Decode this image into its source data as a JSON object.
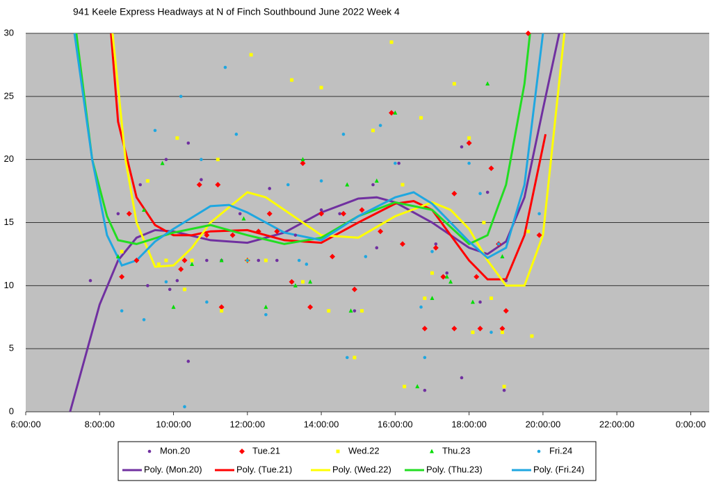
{
  "chart_data": {
    "type": "scatter",
    "title": "941 Keele Express Headways at N of Finch Southbound June 2022  Week 4",
    "xlim": [
      6,
      24.5
    ],
    "ylim": [
      0,
      30
    ],
    "xticks": [
      {
        "value": 6,
        "label": "6:00:00"
      },
      {
        "value": 8,
        "label": "8:00:00"
      },
      {
        "value": 10,
        "label": "10:00:00"
      },
      {
        "value": 12,
        "label": "12:00:00"
      },
      {
        "value": 14,
        "label": "14:00:00"
      },
      {
        "value": 16,
        "label": "16:00:00"
      },
      {
        "value": 18,
        "label": "18:00:00"
      },
      {
        "value": 20,
        "label": "20:00:00"
      },
      {
        "value": 22,
        "label": "22:00:00"
      },
      {
        "value": 24,
        "label": "0:00:00"
      }
    ],
    "yticks": [
      0,
      5,
      10,
      15,
      20,
      25,
      30
    ],
    "grid": true,
    "legend": "bottom",
    "series": [
      {
        "name": "Mon.20",
        "color": "#7030a0",
        "marker": "circle",
        "x": [
          7.75,
          8.5,
          9.1,
          9.3,
          9.8,
          9.9,
          10.1,
          10.4,
          10.4,
          10.75,
          10.9,
          11.3,
          11.8,
          12.3,
          12.6,
          12.8,
          13.3,
          14,
          14.5,
          14.9,
          15.4,
          15.5,
          16.1,
          16.8,
          17.1,
          17.4,
          17.8,
          17.8,
          18.3,
          18.5,
          19,
          18.95
        ],
        "values": [
          10.4,
          15.7,
          18,
          10,
          20,
          9.7,
          10.4,
          21.3,
          4,
          18.4,
          12,
          12,
          15.7,
          12,
          17.7,
          12,
          14,
          16,
          15.7,
          8,
          18,
          13,
          19.7,
          1.7,
          13.3,
          11,
          21,
          2.7,
          8.7,
          17.4,
          10.4,
          1.7
        ]
      },
      {
        "name": "Tue.21",
        "color": "#ff0000",
        "marker": "diamond",
        "x": [
          8.6,
          8.8,
          9,
          10.2,
          10.3,
          10.7,
          10.9,
          11.2,
          11.3,
          11.6,
          12,
          12.3,
          12.6,
          12.8,
          13.2,
          13.5,
          13.7,
          14,
          14.3,
          14.6,
          14.9,
          15.1,
          15.6,
          15.9,
          16.2,
          16.8,
          17.1,
          17.3,
          17.6,
          17.6,
          18,
          18.2,
          18.3,
          18.6,
          18.8,
          18.9,
          19,
          19.6,
          19.9
        ],
        "values": [
          10.7,
          15.7,
          12,
          11.3,
          12,
          18,
          14,
          18,
          8.3,
          14,
          12,
          14.3,
          15.7,
          14.3,
          10.3,
          19.7,
          8.3,
          15.7,
          12.3,
          15.7,
          9.7,
          16,
          14.3,
          23.7,
          13.3,
          6.6,
          13,
          10.7,
          17.3,
          6.6,
          21.3,
          10.7,
          6.6,
          19.3,
          13.3,
          6.6,
          8,
          30,
          14
        ]
      },
      {
        "name": "Wed.22",
        "color": "#ffff00",
        "marker": "square",
        "x": [
          8.6,
          9.3,
          9.6,
          9.8,
          10.1,
          10.3,
          10.5,
          11.2,
          11.3,
          12,
          12.1,
          12.5,
          13.2,
          13.5,
          14,
          14.2,
          14.9,
          15.1,
          15.4,
          15.9,
          16.2,
          16.25,
          16.7,
          16.8,
          17,
          17.6,
          18,
          18.1,
          18.4,
          18.6,
          18.9,
          18.95,
          19.7,
          19.6
        ],
        "values": [
          12.7,
          18.3,
          11.7,
          12,
          21.7,
          9.7,
          12,
          20,
          8,
          12,
          28.3,
          12,
          26.3,
          10.3,
          25.7,
          8,
          4.3,
          8,
          22.3,
          29.3,
          18,
          2,
          23.3,
          9,
          11,
          26,
          21.7,
          6.3,
          15,
          9,
          6.3,
          2,
          6,
          14.3
        ]
      },
      {
        "name": "Thu.23",
        "color": "#00dd00",
        "marker": "triangle",
        "x": [
          8.5,
          9.2,
          9.7,
          10,
          10.5,
          11.3,
          11.9,
          12.5,
          13.3,
          13.5,
          13.7,
          14.7,
          14.8,
          15.5,
          16,
          16.6,
          17,
          17.4,
          17.5,
          18.1,
          18.5,
          18.9
        ],
        "values": [
          12.3,
          16,
          19.7,
          8.3,
          11.7,
          12,
          15.3,
          8.3,
          10,
          20,
          10.3,
          18,
          8,
          18.3,
          23.7,
          2,
          9,
          10.7,
          10.3,
          8.7,
          26,
          12.3
        ]
      },
      {
        "name": "Fri.24",
        "color": "#1fa7e0",
        "marker": "circle",
        "x": [
          8.6,
          9.2,
          9.5,
          9.8,
          10.2,
          10.3,
          10.75,
          10.9,
          11.4,
          11.7,
          12,
          12.5,
          13.1,
          13.4,
          13.6,
          14,
          14.6,
          14.7,
          15.2,
          15.6,
          16,
          16.7,
          16.8,
          17,
          18,
          18.3,
          18.6,
          18.8,
          19.9
        ],
        "values": [
          8,
          7.3,
          22.3,
          10.3,
          25,
          0.4,
          20,
          8.7,
          27.3,
          22,
          12,
          7.7,
          18,
          12,
          11.7,
          18.3,
          22,
          4.3,
          12.3,
          22.7,
          19.7,
          8.3,
          4.3,
          12.7,
          19.7,
          17.3,
          6.3,
          13.3,
          15.7
        ]
      }
    ],
    "trendlines": [
      {
        "name": "Poly. (Mon.20)",
        "color": "#7030a0",
        "x": [
          7.2,
          8,
          8.5,
          9,
          9.5,
          10,
          11,
          12,
          13,
          14,
          15,
          15.5,
          16,
          17,
          18,
          18.5,
          19,
          19.5,
          20,
          20.44
        ],
        "values": [
          0,
          8.5,
          12,
          13.8,
          14.4,
          14.3,
          13.6,
          13.4,
          14.2,
          15.8,
          16.9,
          17,
          16.6,
          15,
          13,
          12.5,
          13.5,
          17,
          24,
          30
        ]
      },
      {
        "name": "Poly. (Tue.21)",
        "color": "#ff0000",
        "x": [
          8.31,
          8.5,
          9,
          9.5,
          10,
          10.5,
          11,
          12,
          13,
          14,
          15,
          16,
          16.5,
          17,
          17.5,
          18,
          18.5,
          19,
          19.5,
          20.07
        ],
        "values": [
          30,
          23,
          17,
          14.8,
          14,
          14,
          14.3,
          14.4,
          13.6,
          13.4,
          15,
          16.5,
          16.7,
          16,
          14,
          12,
          10.5,
          10.5,
          14,
          22
        ]
      },
      {
        "name": "Poly. (Wed.22)",
        "color": "#ffff00",
        "x": [
          8.35,
          8.7,
          9,
          9.5,
          10,
          10.5,
          11,
          12,
          12.5,
          13,
          14,
          15,
          16,
          17,
          17.5,
          18,
          18.5,
          19,
          19.5,
          20,
          20.58
        ],
        "values": [
          30,
          20,
          15,
          11.5,
          11.6,
          13,
          15,
          17.4,
          17,
          16,
          14,
          13.8,
          15.5,
          16.6,
          16,
          14.5,
          12,
          10,
          10,
          14,
          30
        ]
      },
      {
        "name": "Poly. (Thu.23)",
        "color": "#22dd22",
        "x": [
          7.37,
          7.8,
          8.2,
          8.5,
          9,
          10,
          11,
          12,
          13,
          14,
          15,
          16,
          17,
          18,
          18.5,
          19,
          19.5,
          19.65
        ],
        "values": [
          30,
          20,
          15.5,
          13.6,
          13.3,
          14.2,
          14.8,
          14,
          13.3,
          13.8,
          15.5,
          16.6,
          16,
          13.3,
          14,
          18,
          26,
          30
        ]
      },
      {
        "name": "Poly. (Fri.24)",
        "color": "#1fa7e0",
        "x": [
          7.32,
          7.8,
          8.2,
          8.6,
          9,
          9.5,
          10,
          11,
          11.5,
          12,
          13,
          14,
          15,
          16,
          16.5,
          17,
          18,
          18.5,
          19,
          19.5,
          20
        ],
        "values": [
          30,
          20,
          14,
          11.6,
          12,
          13.5,
          14.5,
          16.3,
          16.4,
          15.8,
          14.2,
          13.6,
          15.5,
          17,
          17.4,
          16.5,
          13.5,
          12.2,
          13,
          18,
          30
        ]
      }
    ]
  }
}
